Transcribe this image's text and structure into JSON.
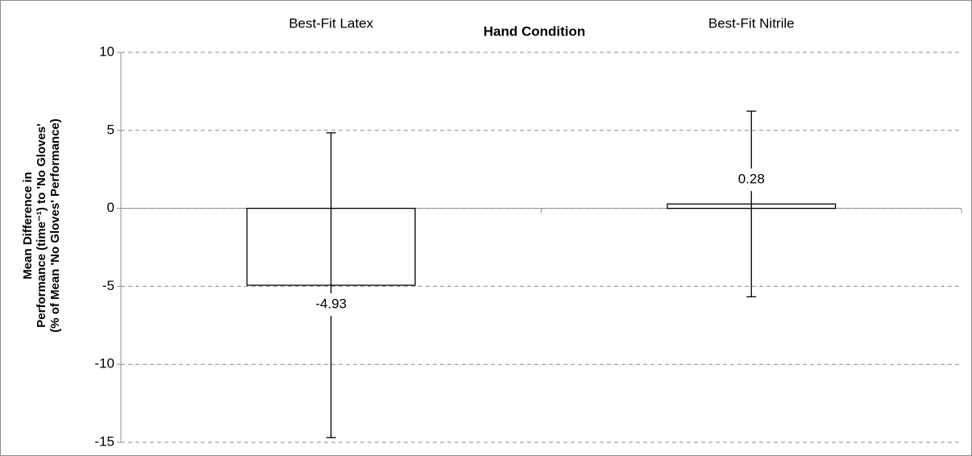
{
  "chart_data": {
    "type": "bar",
    "x_label": "Hand Condition",
    "y_label": [
      "Mean Difference in",
      "Performance (time⁻¹) to 'No Gloves'",
      "(% of Mean 'No Gloves' Performance)"
    ],
    "categories": [
      "Best-Fit Latex",
      "Best-Fit Nitrile"
    ],
    "values": [
      -4.93,
      0.28
    ],
    "errors": [
      9.77,
      5.95
    ],
    "color": "#ffffff",
    "ylim": [
      -15,
      10
    ],
    "yticks": [
      -15,
      -10,
      -5,
      0,
      5,
      10
    ],
    "grid": true
  }
}
